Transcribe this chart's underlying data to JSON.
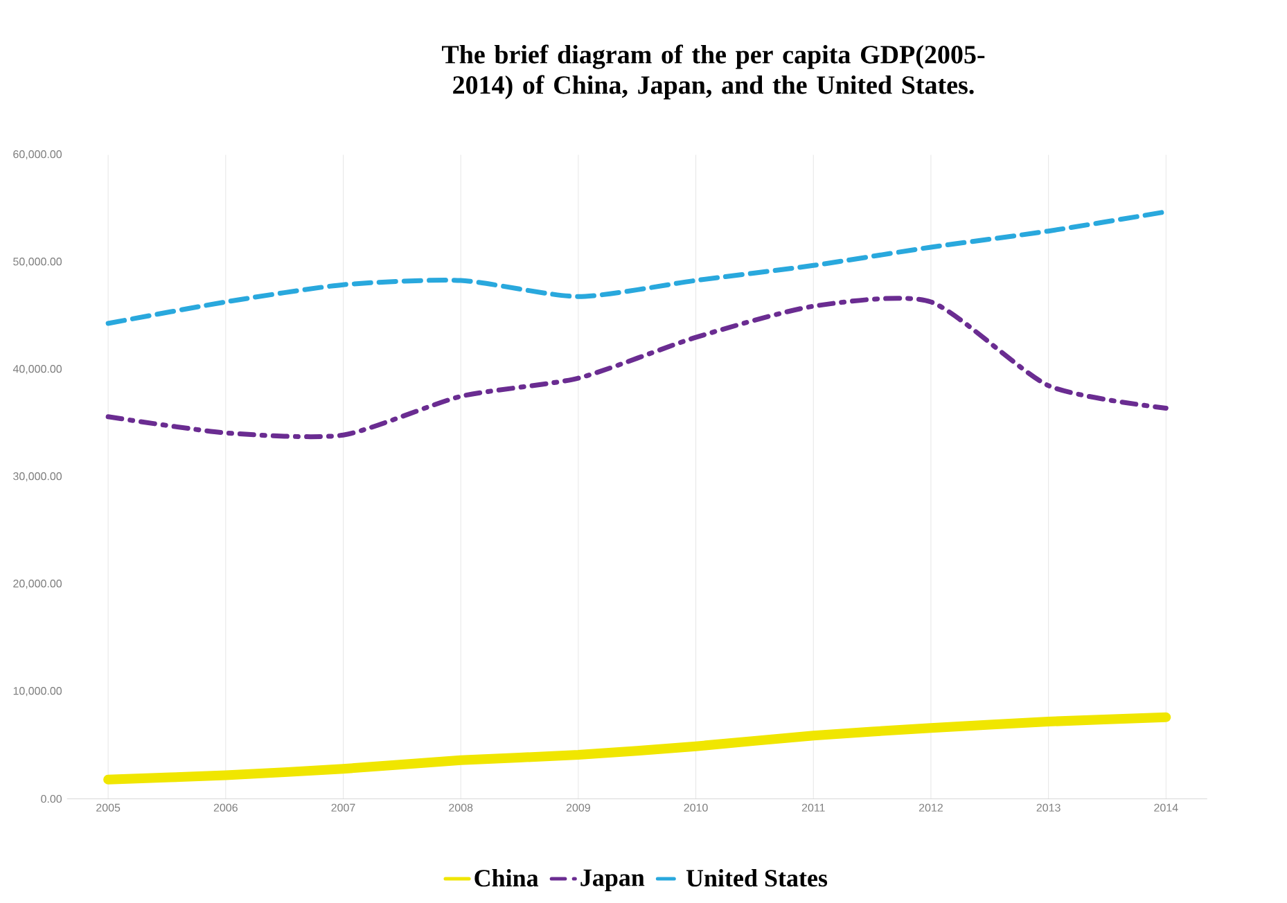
{
  "chart_data": {
    "type": "line",
    "title": "The brief diagram of the per capita GDP(2005-2014) of China, Japan, and the United States.",
    "categories": [
      "2005",
      "2006",
      "2007",
      "2008",
      "2009",
      "2010",
      "2011",
      "2012",
      "2013",
      "2014"
    ],
    "series": [
      {
        "name": "China",
        "color": "#f0e600",
        "line_style": "solid",
        "values": [
          1800,
          2200,
          2800,
          3600,
          4100,
          4900,
          5900,
          6600,
          7200,
          7600
        ]
      },
      {
        "name": "Japan",
        "color": "#6a2c91",
        "line_style": "dashdot",
        "values": [
          35600,
          34100,
          33900,
          37500,
          39200,
          43000,
          45900,
          46300,
          38500,
          36400
        ]
      },
      {
        "name": "United States",
        "color": "#29a8dd",
        "line_style": "dashed",
        "values": [
          44300,
          46300,
          47900,
          48300,
          46800,
          48300,
          49700,
          51400,
          52900,
          54700
        ]
      }
    ],
    "ylim": [
      0,
      60000
    ],
    "yticks": [
      {
        "value": 0,
        "label": "0.00"
      },
      {
        "value": 10000,
        "label": "10,000.00"
      },
      {
        "value": 20000,
        "label": "20,000.00"
      },
      {
        "value": 30000,
        "label": "30,000.00"
      },
      {
        "value": 40000,
        "label": "40,000.00"
      },
      {
        "value": 50000,
        "label": "50,000.00"
      },
      {
        "value": 60000,
        "label": "60,000.00"
      }
    ],
    "grid": "x",
    "legend": "bottom"
  }
}
